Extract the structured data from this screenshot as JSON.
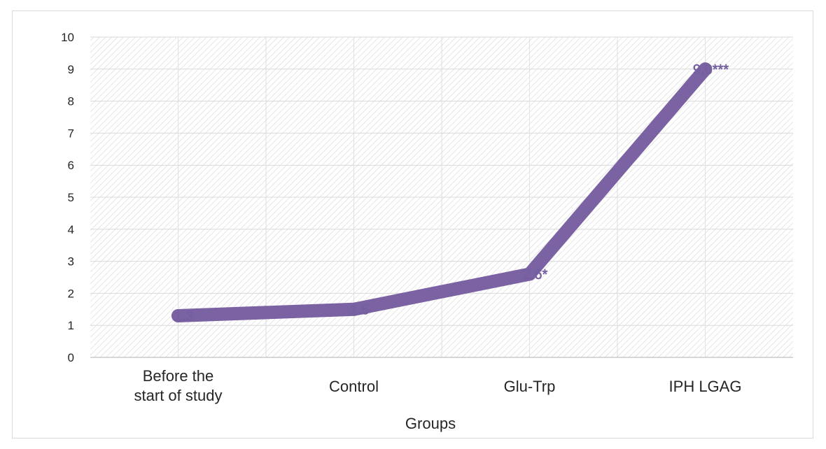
{
  "chart_data": {
    "type": "line",
    "title": "",
    "xlabel": "Groups",
    "ylabel": "",
    "categories": [
      [
        "Before the",
        "start of study"
      ],
      [
        "Control"
      ],
      [
        "Glu-Trp"
      ],
      [
        "IPH LGAG"
      ]
    ],
    "series": [
      {
        "values": [
          1.3,
          1.5,
          2.6,
          9.0
        ],
        "data_labels": [
          "1.3",
          "1.5",
          "2.6*",
          "9.0***"
        ],
        "color": "#7b62a3"
      }
    ],
    "ylim": [
      0,
      10
    ],
    "yticks": [
      0,
      1,
      2,
      3,
      4,
      5,
      6,
      7,
      8,
      9,
      10
    ],
    "grid": true,
    "plot_background": "hatched",
    "legend": "none"
  }
}
